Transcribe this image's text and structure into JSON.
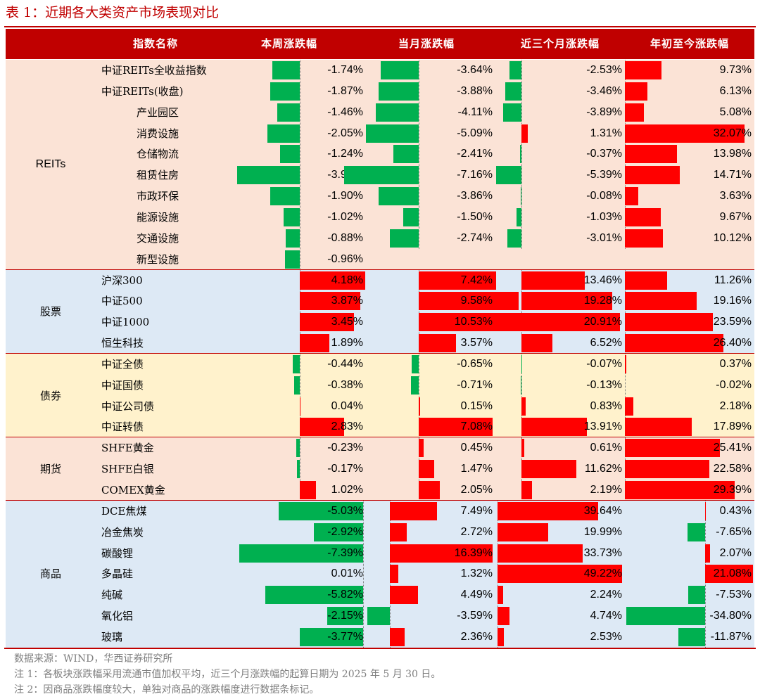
{
  "caption": "表 1：近期各大类资产市场表现对比",
  "columns": [
    "指数名称",
    "本周涨跌幅",
    "当月涨跌幅",
    "近三个月涨跌幅",
    "年初至今涨跌幅"
  ],
  "colors": {
    "header_bg": "#c00000",
    "positive_bar": "#ff0000",
    "negative_bar": "#00b050",
    "reits_bg": "#fbe3d6",
    "stock_bg": "#dde9f5",
    "bond_bg": "#fff2cc",
    "futures_bg": "#fbe3d6",
    "commodity_bg": "#dde9f5"
  },
  "groups": [
    {
      "name": "REITs",
      "bg": "#fbe3d6",
      "rows": [
        {
          "name": "中证REITs全收益指数",
          "indent": 0,
          "week": "-1.74%",
          "month": "-3.64%",
          "three_month": "-2.53%",
          "ytd": "9.73%"
        },
        {
          "name": "中证REITs(收盘)",
          "indent": 0,
          "week": "-1.87%",
          "month": "-3.88%",
          "three_month": "-3.46%",
          "ytd": "6.13%"
        },
        {
          "name": "产业园区",
          "indent": 1,
          "week": "-1.46%",
          "month": "-4.11%",
          "three_month": "-3.89%",
          "ytd": "5.08%"
        },
        {
          "name": "消费设施",
          "indent": 1,
          "week": "-2.05%",
          "month": "-5.09%",
          "three_month": "1.31%",
          "ytd": "32.07%"
        },
        {
          "name": "仓储物流",
          "indent": 1,
          "week": "-1.24%",
          "month": "-2.41%",
          "three_month": "-0.37%",
          "ytd": "13.98%"
        },
        {
          "name": "租赁住房",
          "indent": 1,
          "week": "-3.99%",
          "month": "-7.16%",
          "three_month": "-5.39%",
          "ytd": "14.71%"
        },
        {
          "name": "市政环保",
          "indent": 1,
          "week": "-1.90%",
          "month": "-3.86%",
          "three_month": "-0.08%",
          "ytd": "3.63%"
        },
        {
          "name": "能源设施",
          "indent": 1,
          "week": "-1.02%",
          "month": "-1.50%",
          "three_month": "-1.03%",
          "ytd": "9.67%"
        },
        {
          "name": "交通设施",
          "indent": 1,
          "week": "-0.88%",
          "month": "-2.74%",
          "three_month": "-3.01%",
          "ytd": "10.12%"
        },
        {
          "name": "新型设施",
          "indent": 1,
          "week": "-0.96%",
          "month": "",
          "three_month": "",
          "ytd": ""
        }
      ]
    },
    {
      "name": "股票",
      "bg": "#dde9f5",
      "rows": [
        {
          "name": "沪深300",
          "indent": 0,
          "week": "4.18%",
          "month": "7.42%",
          "three_month": "13.46%",
          "ytd": "11.26%"
        },
        {
          "name": "中证500",
          "indent": 0,
          "week": "3.87%",
          "month": "9.58%",
          "three_month": "19.28%",
          "ytd": "19.16%"
        },
        {
          "name": "中证1000",
          "indent": 0,
          "week": "3.45%",
          "month": "10.53%",
          "three_month": "20.91%",
          "ytd": "23.59%"
        },
        {
          "name": "恒生科技",
          "indent": 0,
          "week": "1.89%",
          "month": "3.57%",
          "three_month": "6.52%",
          "ytd": "26.40%"
        }
      ]
    },
    {
      "name": "债券",
      "bg": "#fff2cc",
      "rows": [
        {
          "name": "中证全债",
          "indent": 0,
          "week": "-0.44%",
          "month": "-0.65%",
          "three_month": "-0.07%",
          "ytd": "0.37%"
        },
        {
          "name": "中证国债",
          "indent": 0,
          "week": "-0.38%",
          "month": "-0.71%",
          "three_month": "-0.13%",
          "ytd": "-0.02%"
        },
        {
          "name": "中证公司债",
          "indent": 0,
          "week": "0.04%",
          "month": "0.15%",
          "three_month": "0.83%",
          "ytd": "2.18%"
        },
        {
          "name": "中证转债",
          "indent": 0,
          "week": "2.83%",
          "month": "7.08%",
          "three_month": "13.91%",
          "ytd": "17.89%"
        }
      ]
    },
    {
      "name": "期货",
      "bg": "#fbe3d6",
      "rows": [
        {
          "name": "SHFE黄金",
          "indent": 0,
          "week": "-0.23%",
          "month": "0.45%",
          "three_month": "0.61%",
          "ytd": "25.41%"
        },
        {
          "name": "SHFE白银",
          "indent": 0,
          "week": "-0.17%",
          "month": "1.47%",
          "three_month": "11.62%",
          "ytd": "22.58%"
        },
        {
          "name": "COMEX黄金",
          "indent": 0,
          "week": "1.02%",
          "month": "2.05%",
          "three_month": "2.19%",
          "ytd": "29.39%"
        }
      ]
    },
    {
      "name": "商品",
      "bg": "#dde9f5",
      "rows": [
        {
          "name": "DCE焦煤",
          "indent": 0,
          "week": "-5.03%",
          "month": "7.49%",
          "three_month": "39.64%",
          "ytd": "0.43%"
        },
        {
          "name": "冶金焦炭",
          "indent": 0,
          "week": "-2.92%",
          "month": "2.72%",
          "three_month": "19.99%",
          "ytd": "-7.65%"
        },
        {
          "name": "碳酸锂",
          "indent": 0,
          "week": "-7.39%",
          "month": "16.39%",
          "three_month": "33.73%",
          "ytd": "2.07%"
        },
        {
          "name": "多晶硅",
          "indent": 0,
          "week": "0.01%",
          "month": "1.32%",
          "three_month": "49.22%",
          "ytd": "21.08%"
        },
        {
          "name": "纯碱",
          "indent": 0,
          "week": "-5.82%",
          "month": "4.49%",
          "three_month": "2.24%",
          "ytd": "-7.53%"
        },
        {
          "name": "氧化铝",
          "indent": 0,
          "week": "-2.15%",
          "month": "-3.59%",
          "three_month": "4.74%",
          "ytd": "-34.80%"
        },
        {
          "name": "玻璃",
          "indent": 0,
          "week": "-3.77%",
          "month": "2.36%",
          "three_month": "2.53%",
          "ytd": "-11.87%"
        }
      ]
    }
  ],
  "notes": [
    "数据来源：WIND，华西证券研究所",
    "注 1：各板块涨跌幅采用流通市值加权平均，近三个月涨跌幅的起算日期为 2025 年 5 月 30 日。",
    "注 2：因商品涨跌幅度较大，单独对商品的涨跌幅度进行数据条标记。"
  ]
}
